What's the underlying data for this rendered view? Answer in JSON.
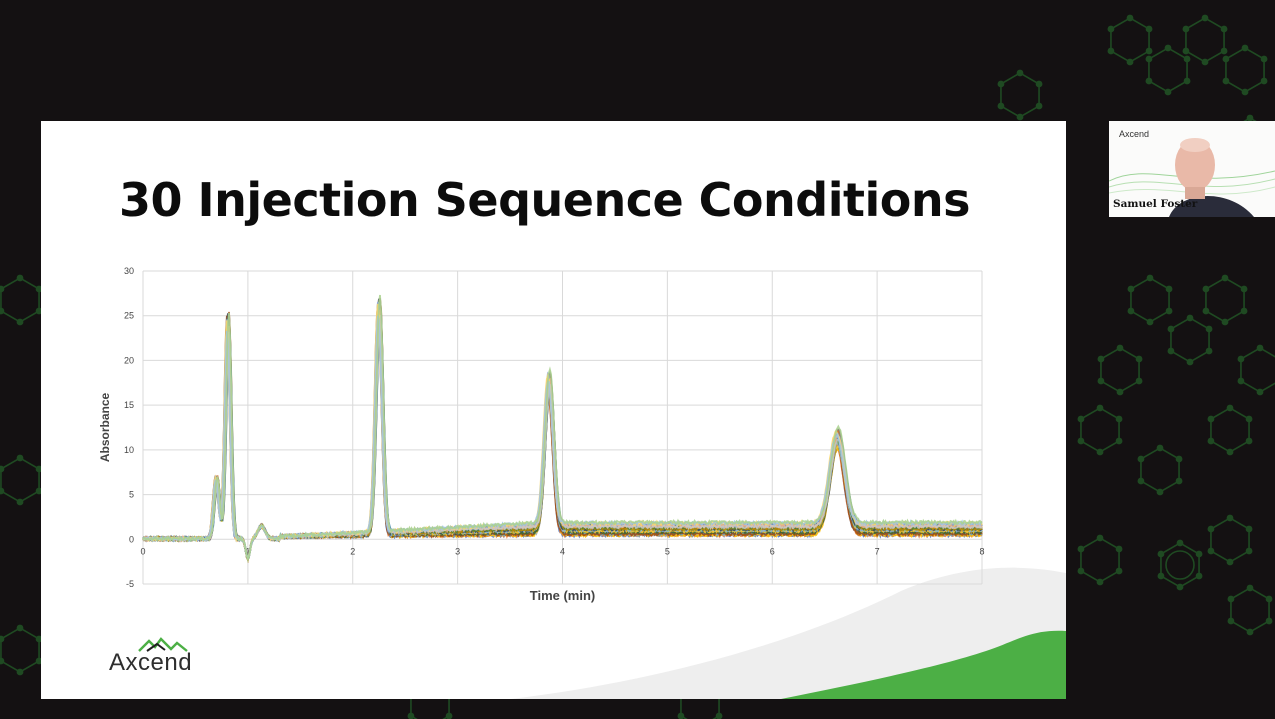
{
  "slide": {
    "title": "30 Injection Sequence Conditions",
    "logo_text": "Axcend"
  },
  "video_tile": {
    "participant_name": "Samuel Foster",
    "logo_text": "Axcend"
  },
  "colors": {
    "accent_green": "#4caf45",
    "pattern_green": "#1f4a22",
    "background": "#141112"
  },
  "chart_data": {
    "type": "line",
    "title": "",
    "xlabel": "Time (min)",
    "ylabel": "Absorbance",
    "xlim": [
      0,
      8
    ],
    "ylim": [
      -5,
      30
    ],
    "x_ticks": [
      0,
      1,
      2,
      3,
      4,
      5,
      6,
      7,
      8
    ],
    "y_ticks": [
      -5,
      0,
      5,
      10,
      15,
      20,
      25,
      30
    ],
    "grid": true,
    "legend": "none",
    "series_count": 30,
    "peaks": [
      {
        "rt": 0.7,
        "height": 7,
        "width": 0.025
      },
      {
        "rt": 0.81,
        "height": 25,
        "width": 0.025
      },
      {
        "rt": 2.25,
        "height": 26,
        "width": 0.032
      },
      {
        "rt": 3.87,
        "height": 17,
        "width": 0.042
      },
      {
        "rt": 6.62,
        "height": 10.5,
        "width": 0.07
      }
    ],
    "baseline_start": 0.2,
    "baseline_end": 1.5,
    "series_colors": [
      "#4472c4",
      "#ed7d31",
      "#a5a5a5",
      "#ffc000",
      "#5b9bd5",
      "#70ad47",
      "#264478",
      "#9e480e",
      "#636363",
      "#997300",
      "#255e91",
      "#43682b",
      "#698ed0",
      "#f1975a",
      "#b7b7b7",
      "#ffcd33",
      "#7cafdd",
      "#8cc168",
      "#333f50",
      "#c55a11",
      "#7f7f7f",
      "#bf9000",
      "#2e75b6",
      "#548235",
      "#8faadc",
      "#f4b183",
      "#c9c9c9",
      "#ffd966",
      "#9dc3e6",
      "#a9d18e"
    ]
  }
}
